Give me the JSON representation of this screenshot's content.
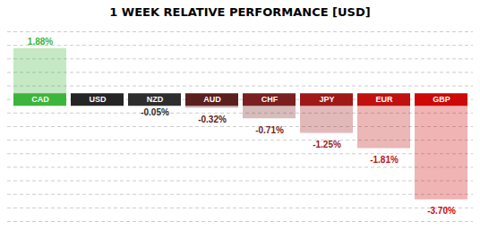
{
  "chart_data": {
    "type": "bar",
    "title": "1 WEEK RELATIVE PERFORMANCE [USD]",
    "categories": [
      "CAD",
      "USD",
      "NZD",
      "AUD",
      "CHF",
      "JPY",
      "EUR",
      "GBP"
    ],
    "values": [
      1.88,
      0.0,
      -0.05,
      -0.32,
      -0.71,
      -1.25,
      -1.81,
      -3.7
    ],
    "value_labels": [
      "1.88%",
      null,
      "-0.05%",
      "-0.32%",
      "-0.71%",
      "-1.25%",
      "-1.81%",
      "-3.70%"
    ],
    "colors": [
      "#3cb53c",
      "#252525",
      "#2e2e2e",
      "#5a2020",
      "#7a2020",
      "#a01818",
      "#c01010",
      "#cc0808"
    ],
    "ylim": [
      -4.5,
      2.5
    ],
    "yticks": [
      -4.5,
      -4.0,
      -3.5,
      -3.0,
      -2.5,
      -2.0,
      -1.5,
      -1.0,
      -0.5,
      0.0,
      0.5,
      1.0,
      1.5,
      2.0,
      2.5
    ],
    "grid": true,
    "data_labels": true,
    "tick_labels": false
  }
}
